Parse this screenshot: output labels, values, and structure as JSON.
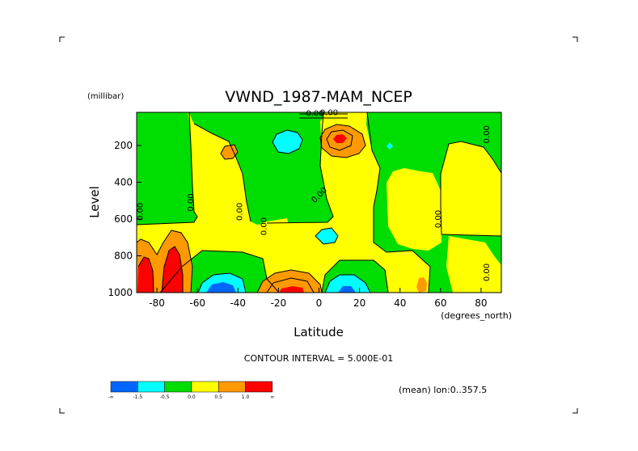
{
  "chart_data": {
    "type": "heatmap",
    "title": "VWND_1987-MAM_NCEP",
    "xlabel": "Latitude",
    "ylabel": "Level",
    "x_units": "(degrees_north)",
    "y_units": "(millibar)",
    "xlim": [
      -90,
      90
    ],
    "ylim": [
      1000,
      20
    ],
    "y_inverted": true,
    "x_ticks": [
      -80,
      -60,
      -40,
      -20,
      0,
      20,
      40,
      60,
      80
    ],
    "y_ticks": [
      200,
      400,
      600,
      800,
      1000
    ],
    "contour_interval_text": "CONTOUR INTERVAL = 5.000E-01",
    "mean_text": "(mean) lon:0..357.5",
    "contour_labels": [
      "0.00",
      "0.00",
      "0.00",
      "0.00",
      "0.00",
      "0.00",
      "0.00",
      "0.00",
      "0.00",
      "0.00"
    ],
    "colorbar": {
      "tick_labels": [
        "-∞",
        "-1.5",
        "-0.5",
        "0.0",
        "0.5",
        "1.0",
        "∞"
      ],
      "bins": [
        {
          "range": [
            -1.5,
            -1.0
          ],
          "color": "#0066ff"
        },
        {
          "range": [
            -1.0,
            -0.5
          ],
          "color": "#00ffff"
        },
        {
          "range": [
            -0.5,
            0.0
          ],
          "color": "#00dd00"
        },
        {
          "range": [
            0.0,
            0.5
          ],
          "color": "#ffff00"
        },
        {
          "range": [
            0.5,
            1.0
          ],
          "color": "#ff9900"
        },
        {
          "range": [
            1.0,
            1.5
          ],
          "color": "#ff0000"
        }
      ]
    },
    "regions": [
      {
        "label": "positive max",
        "lat": -87,
        "level": 900,
        "value_bin": 1.5
      },
      {
        "label": "positive max",
        "lat": -73,
        "level": 880,
        "value_bin": 1.5
      },
      {
        "label": "positive max",
        "lat": 10,
        "level": 155,
        "value_bin": 1.5
      },
      {
        "label": "positive max",
        "lat": -17,
        "level": 985,
        "value_bin": 1.5
      },
      {
        "label": "negative min",
        "lat": -48,
        "level": 980,
        "value_bin": -1.5
      },
      {
        "label": "negative min",
        "lat": 15,
        "level": 975,
        "value_bin": -1.5
      },
      {
        "label": "negative min",
        "lat": -19,
        "level": 150,
        "value_bin": -1.0
      },
      {
        "label": "negative min",
        "lat": 4,
        "level": 695,
        "value_bin": -1.0
      }
    ],
    "grid": false,
    "legend": "bottom-left colorbar"
  }
}
